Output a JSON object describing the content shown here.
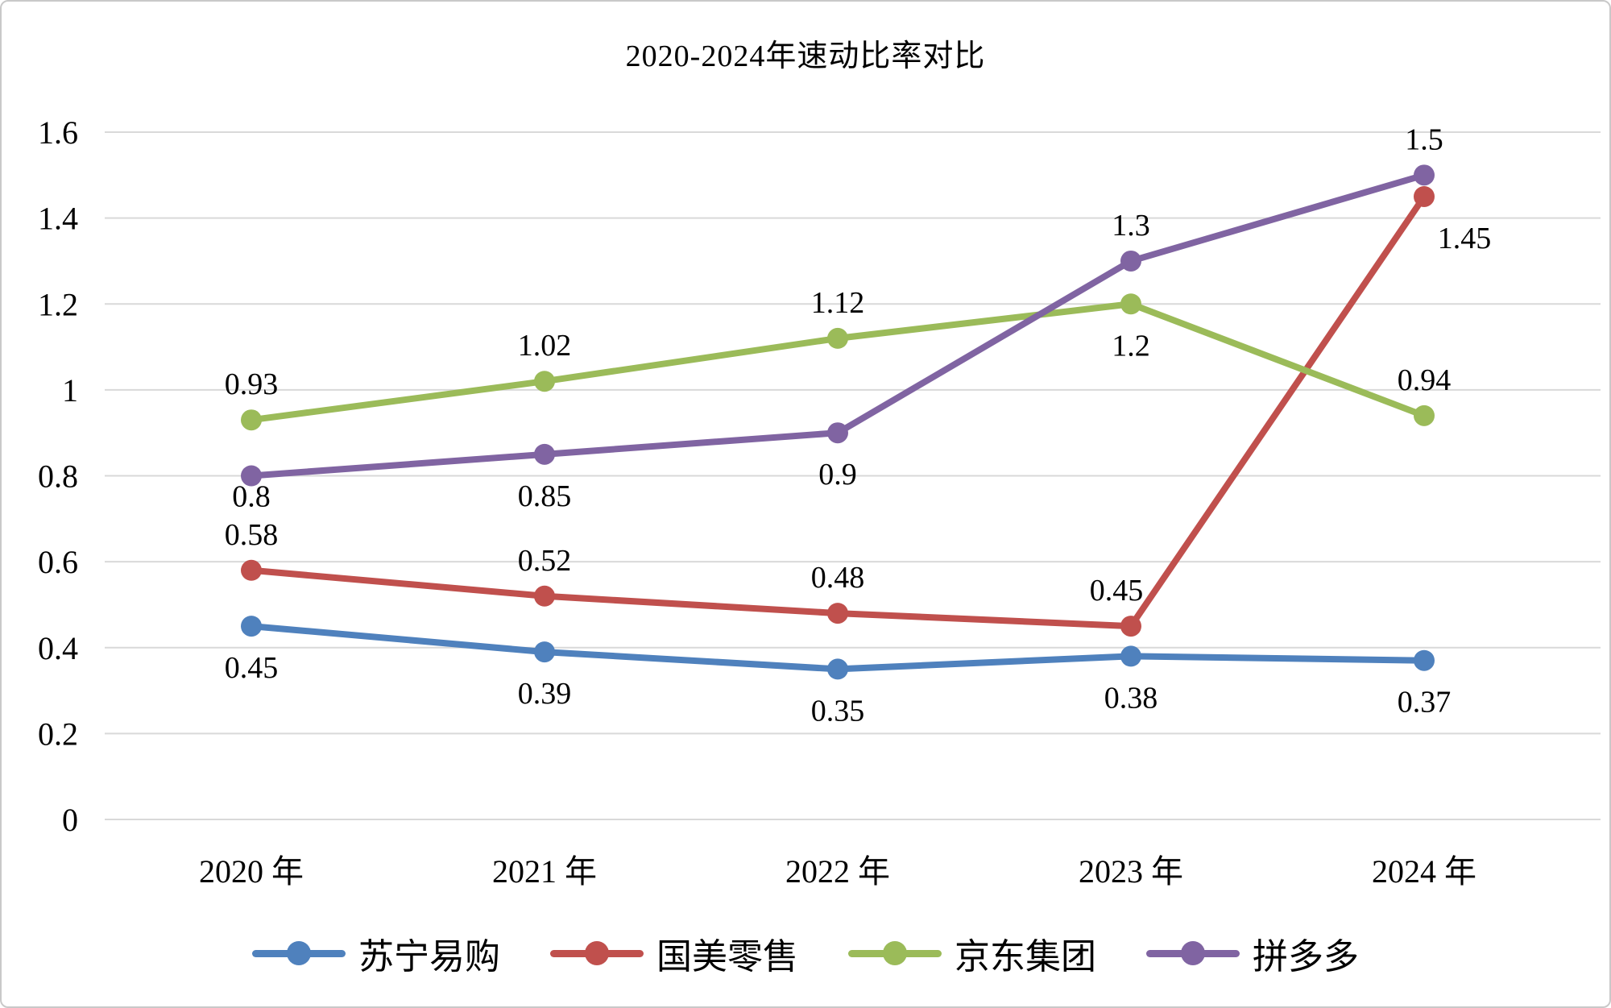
{
  "chart_data": {
    "type": "line",
    "title": "2020-2024年速动比率对比",
    "categories": [
      "2020 年",
      "2021 年",
      "2022 年",
      "2023 年",
      "2024 年"
    ],
    "y_ticks": [
      "0",
      "0.2",
      "0.4",
      "0.6",
      "0.8",
      "1",
      "1.2",
      "1.4",
      "1.6"
    ],
    "ylim": [
      0,
      1.6
    ],
    "grid": true,
    "gridline_color": "#D9D9D9",
    "legend_position": "bottom",
    "series": [
      {
        "name": "苏宁易购",
        "slug": "suning",
        "color": "#4F81BD",
        "values": [
          0.45,
          0.39,
          0.35,
          0.38,
          0.37
        ],
        "labels": [
          "0.45",
          "0.39",
          "0.35",
          "0.38",
          "0.37"
        ],
        "label_side": [
          "below",
          "below",
          "below",
          "below",
          "below"
        ],
        "label_offsets": [
          null,
          null,
          null,
          null,
          null
        ]
      },
      {
        "name": "国美零售",
        "slug": "gome",
        "color": "#C0504D",
        "values": [
          0.58,
          0.52,
          0.48,
          0.45,
          1.45
        ],
        "labels": [
          "0.58",
          "0.52",
          "0.48",
          "0.45",
          "1.45"
        ],
        "label_side": [
          "above",
          "above",
          "above",
          "above",
          "below-right"
        ],
        "label_offsets": [
          null,
          null,
          null,
          [
            -18,
            0
          ],
          null
        ]
      },
      {
        "name": "京东集团",
        "slug": "jd",
        "color": "#9BBB59",
        "values": [
          0.93,
          1.02,
          1.12,
          1.2,
          0.94
        ],
        "labels": [
          "0.93",
          "1.02",
          "1.12",
          "1.2",
          "0.94"
        ],
        "label_side": [
          "above",
          "above",
          "above",
          "below",
          "above"
        ],
        "label_offsets": [
          null,
          null,
          null,
          null,
          null
        ]
      },
      {
        "name": "拼多多",
        "slug": "pinduoduo",
        "color": "#8064A2",
        "values": [
          0.8,
          0.85,
          0.9,
          1.3,
          1.5
        ],
        "labels": [
          "0.8",
          "0.85",
          "0.9",
          "1.3",
          "1.5"
        ],
        "label_side": [
          "below",
          "below",
          "below",
          "above",
          "above"
        ],
        "label_offsets": [
          [
            0,
            -26
          ],
          null,
          null,
          null,
          null
        ]
      }
    ]
  }
}
